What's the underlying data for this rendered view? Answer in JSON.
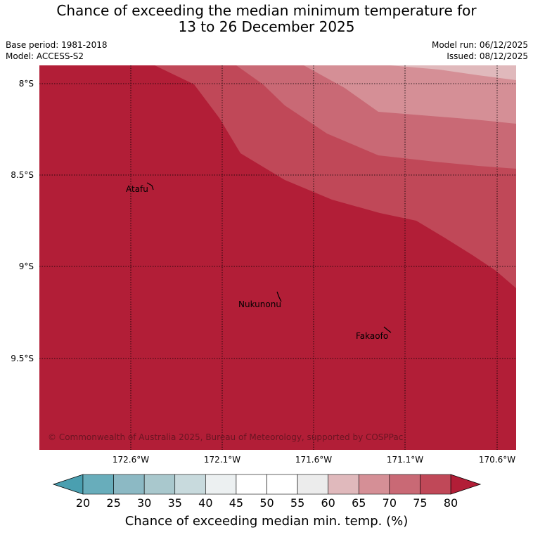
{
  "header": {
    "title_line1": "Chance of exceeding the median minimum temperature for",
    "title_line2": "13 to 26 December 2025",
    "base_period": "Base period: 1981-2018",
    "model": "Model: ACCESS-S2",
    "model_run": "Model run: 06/12/2025",
    "issued": "Issued: 08/12/2025"
  },
  "map": {
    "lat_ticks": [
      "8°S",
      "8.5°S",
      "9°S",
      "9.5°S"
    ],
    "lon_ticks": [
      "172.6°W",
      "172.1°W",
      "171.6°W",
      "171.1°W",
      "170.6°W"
    ],
    "places": [
      {
        "name": "Atafu"
      },
      {
        "name": "Nukunonu"
      },
      {
        "name": "Fakaofo"
      }
    ],
    "copyright": "© Commonwealth of Australia 2025, Bureau of Meteorology, supported by COSPPac",
    "band_colors": {
      "gt80": "#b21e37",
      "75_80": "#c04858",
      "70_75": "#c96975",
      "65_70": "#d58f96",
      "60_65": "#e0b9bc"
    }
  },
  "colorbar": {
    "label": "Chance of exceeding median min. temp. (%)",
    "ticks": [
      "20",
      "25",
      "30",
      "35",
      "40",
      "45",
      "50",
      "55",
      "60",
      "65",
      "70",
      "75",
      "80"
    ],
    "colors": [
      "#68adbb",
      "#8cb9c4",
      "#a9c8cd",
      "#c8dadd",
      "#ecf0f1",
      "#ffffff",
      "#ffffff",
      "#ececec",
      "#e0b9bc",
      "#d58f96",
      "#c96975",
      "#c04858"
    ],
    "low_extend_color": "#4a9fb0",
    "high_extend_color": "#b21e37"
  }
}
